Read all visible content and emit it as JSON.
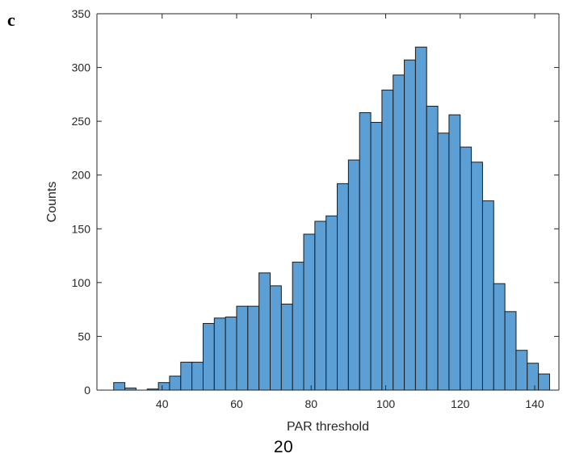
{
  "panel_label": "c",
  "page_number": "20",
  "colors": {
    "bar_fill": "#5b9fd5",
    "bar_edge": "#1c1c1c",
    "axis": "#262626"
  },
  "chart_data": {
    "type": "bar",
    "title": "",
    "xlabel": "PAR threshold",
    "ylabel": "Counts",
    "xlim": [
      22.5,
      146.5
    ],
    "ylim": [
      0,
      350
    ],
    "xticks": [
      40,
      60,
      80,
      100,
      120,
      140
    ],
    "yticks": [
      0,
      50,
      100,
      150,
      200,
      250,
      300,
      350
    ],
    "grid": false,
    "bin_width": 3,
    "bin_start": 27,
    "values": [
      7,
      2,
      0,
      1,
      7,
      13,
      26,
      26,
      62,
      67,
      68,
      78,
      78,
      109,
      97,
      80,
      119,
      145,
      157,
      162,
      192,
      214,
      258,
      249,
      279,
      293,
      307,
      319,
      264,
      239,
      256,
      226,
      212,
      176,
      99,
      73,
      37,
      25,
      15
    ]
  }
}
